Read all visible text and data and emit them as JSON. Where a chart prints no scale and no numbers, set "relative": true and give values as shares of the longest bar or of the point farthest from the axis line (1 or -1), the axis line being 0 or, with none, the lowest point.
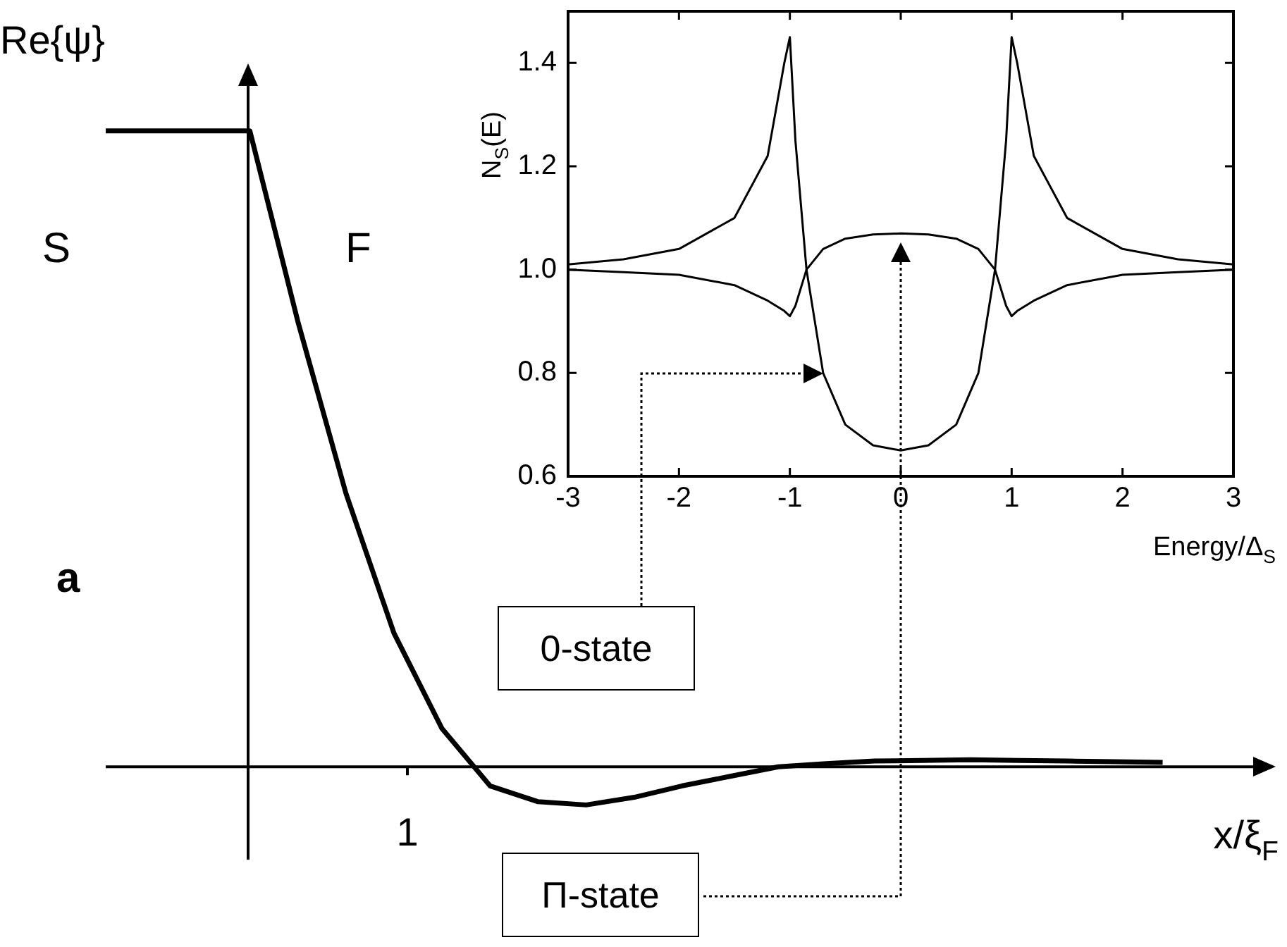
{
  "chart_data": [
    {
      "type": "line",
      "relative": true,
      "ylabel": "Re{ψ}",
      "xlabel": "x/ξ$_{F}$",
      "categories": [
        null,
        null,
        null,
        null,
        null,
        null,
        null,
        null,
        null,
        null,
        null,
        null,
        null,
        null,
        null,
        null,
        null,
        null,
        null,
        null,
        null,
        null,
        null
      ],
      "series": [
        {
          "color": "#000000",
          "values": [
            1,
            1,
            1,
            1,
            0.7,
            0.43,
            0.21,
            0.06,
            -0.03,
            -0.055,
            -0.06,
            -0.048,
            -0.03,
            -0.015,
            0,
            0.005,
            0.009,
            0.01,
            0.011,
            0.01,
            0.009,
            0.008,
            0.007
          ]
        }
      ],
      "legend": false,
      "marker": "none",
      "line_style": "solid",
      "annotations": [
        "S",
        "F",
        "a",
        "1"
      ]
    },
    {
      "type": "line",
      "ylabel": "N$_{S}$(E)",
      "xlabel": "Energy/Δ$_{S}$",
      "x": [
        -3,
        -2.5,
        -2,
        -1.5,
        -1.2,
        -1.05,
        -1,
        -0.95,
        -0.85,
        -0.7,
        -0.5,
        -0.25,
        0,
        0.25,
        0.5,
        0.7,
        0.85,
        0.95,
        1,
        1.05,
        1.2,
        1.5,
        2,
        2.5,
        3
      ],
      "series": [
        {
          "color": "#000000",
          "values": [
            1.01,
            1.02,
            1.04,
            1.1,
            1.22,
            1.4,
            1.45,
            1.25,
            1.0,
            0.8,
            0.7,
            0.66,
            0.65,
            0.66,
            0.7,
            0.8,
            1.0,
            1.25,
            1.45,
            1.4,
            1.22,
            1.1,
            1.04,
            1.02,
            1.01
          ]
        },
        {
          "color": "#000000",
          "values": [
            1.0,
            0.995,
            0.99,
            0.97,
            0.94,
            0.92,
            0.91,
            0.93,
            1.0,
            1.04,
            1.06,
            1.068,
            1.07,
            1.068,
            1.06,
            1.04,
            1.0,
            0.93,
            0.91,
            0.92,
            0.94,
            0.97,
            0.99,
            0.995,
            1.0
          ]
        }
      ],
      "xlim": [
        -3,
        3
      ],
      "xticks": [
        -3,
        -2,
        -1,
        0,
        1,
        2,
        3
      ],
      "ylim": [
        0.6,
        1.5
      ],
      "yticks": [
        {
          "value": 0.6,
          "label": "0.6"
        },
        {
          "value": 0.8,
          "label": "0.8"
        },
        {
          "value": 1.0,
          "label": "1.0"
        },
        {
          "value": 1.2,
          "label": "1.2"
        },
        {
          "value": 1.4,
          "label": "1.4"
        }
      ],
      "legend": false,
      "marker": "none",
      "line_style": "solid",
      "annotations": [
        "0-state",
        "Π-state"
      ]
    }
  ]
}
